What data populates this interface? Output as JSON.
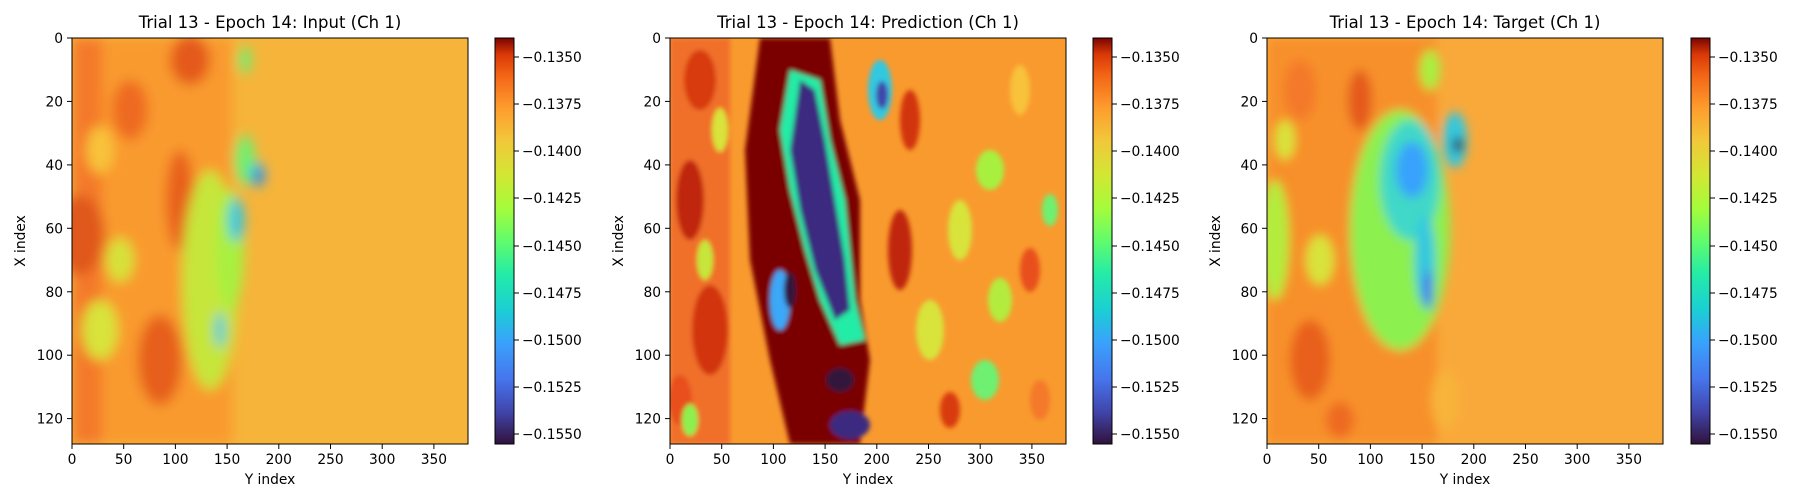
{
  "chart_data": [
    {
      "type": "heatmap",
      "title": "Trial 13 - Epoch 14: Input (Ch 1)",
      "xlabel": "Y index",
      "ylabel": "X index",
      "xlim": [
        0,
        383
      ],
      "ylim": [
        128,
        0
      ],
      "xticks": [
        "0",
        "50",
        "100",
        "150",
        "200",
        "250",
        "300",
        "350"
      ],
      "yticks": [
        "0",
        "20",
        "40",
        "60",
        "80",
        "100",
        "120"
      ],
      "colormap": "turbo",
      "colorbar": {
        "min": -0.1555,
        "max": -0.134,
        "ticks": [
          "−0.1350",
          "−0.1375",
          "−0.1400",
          "−0.1425",
          "−0.1450",
          "−0.1475",
          "−0.1500",
          "−0.1525",
          "−0.1550"
        ]
      }
    },
    {
      "type": "heatmap",
      "title": "Trial 13 - Epoch 14: Prediction (Ch 1)",
      "xlabel": "Y index",
      "ylabel": "X index",
      "xlim": [
        0,
        383
      ],
      "ylim": [
        128,
        0
      ],
      "xticks": [
        "0",
        "50",
        "100",
        "150",
        "200",
        "250",
        "300",
        "350"
      ],
      "yticks": [
        "0",
        "20",
        "40",
        "60",
        "80",
        "100",
        "120"
      ],
      "colormap": "turbo",
      "colorbar": {
        "min": -0.1555,
        "max": -0.134,
        "ticks": [
          "−0.1350",
          "−0.1375",
          "−0.1400",
          "−0.1425",
          "−0.1450",
          "−0.1475",
          "−0.1500",
          "−0.1525",
          "−0.1550"
        ]
      }
    },
    {
      "type": "heatmap",
      "title": "Trial 13 - Epoch 14: Target (Ch 1)",
      "xlabel": "Y index",
      "ylabel": "X index",
      "xlim": [
        0,
        383
      ],
      "ylim": [
        128,
        0
      ],
      "xticks": [
        "0",
        "50",
        "100",
        "150",
        "200",
        "250",
        "300",
        "350"
      ],
      "yticks": [
        "0",
        "20",
        "40",
        "60",
        "80",
        "100",
        "120"
      ],
      "colormap": "turbo",
      "colorbar": {
        "min": -0.1555,
        "max": -0.134,
        "ticks": [
          "−0.1350",
          "−0.1375",
          "−0.1400",
          "−0.1425",
          "−0.1450",
          "−0.1475",
          "−0.1500",
          "−0.1525",
          "−0.1550"
        ]
      }
    }
  ]
}
